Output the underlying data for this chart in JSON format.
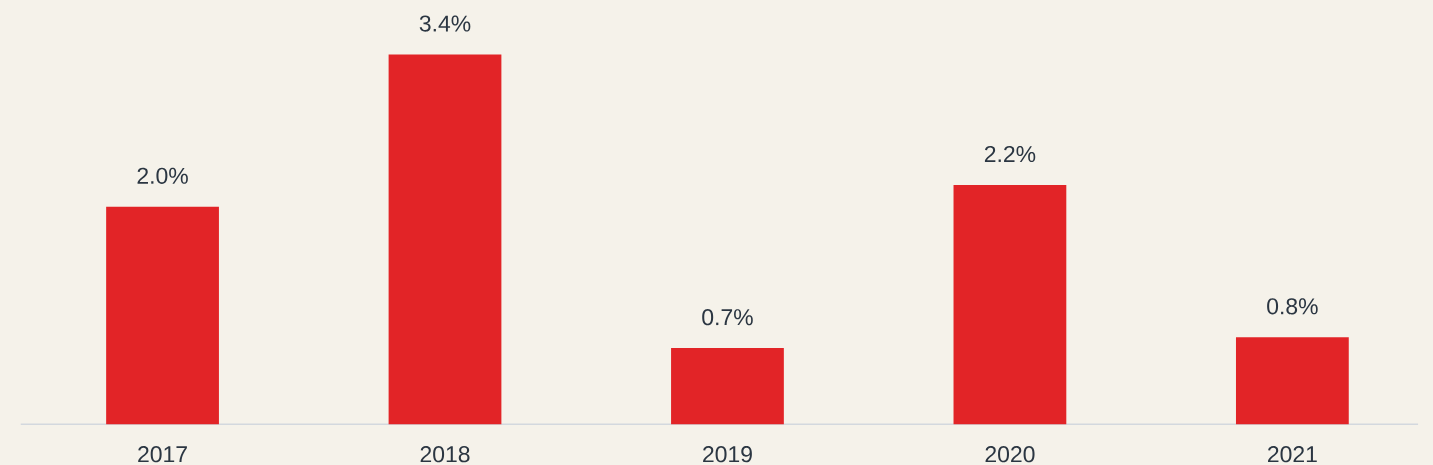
{
  "chart_data": {
    "type": "bar",
    "categories": [
      "2017",
      "2018",
      "2019",
      "2020",
      "2021"
    ],
    "values": [
      2.0,
      3.4,
      0.7,
      2.2,
      0.8
    ],
    "value_labels": [
      "2.0%",
      "3.4%",
      "0.7%",
      "2.2%",
      "0.8%"
    ],
    "color": "#e22427",
    "ylim": [
      0,
      3.9
    ]
  }
}
